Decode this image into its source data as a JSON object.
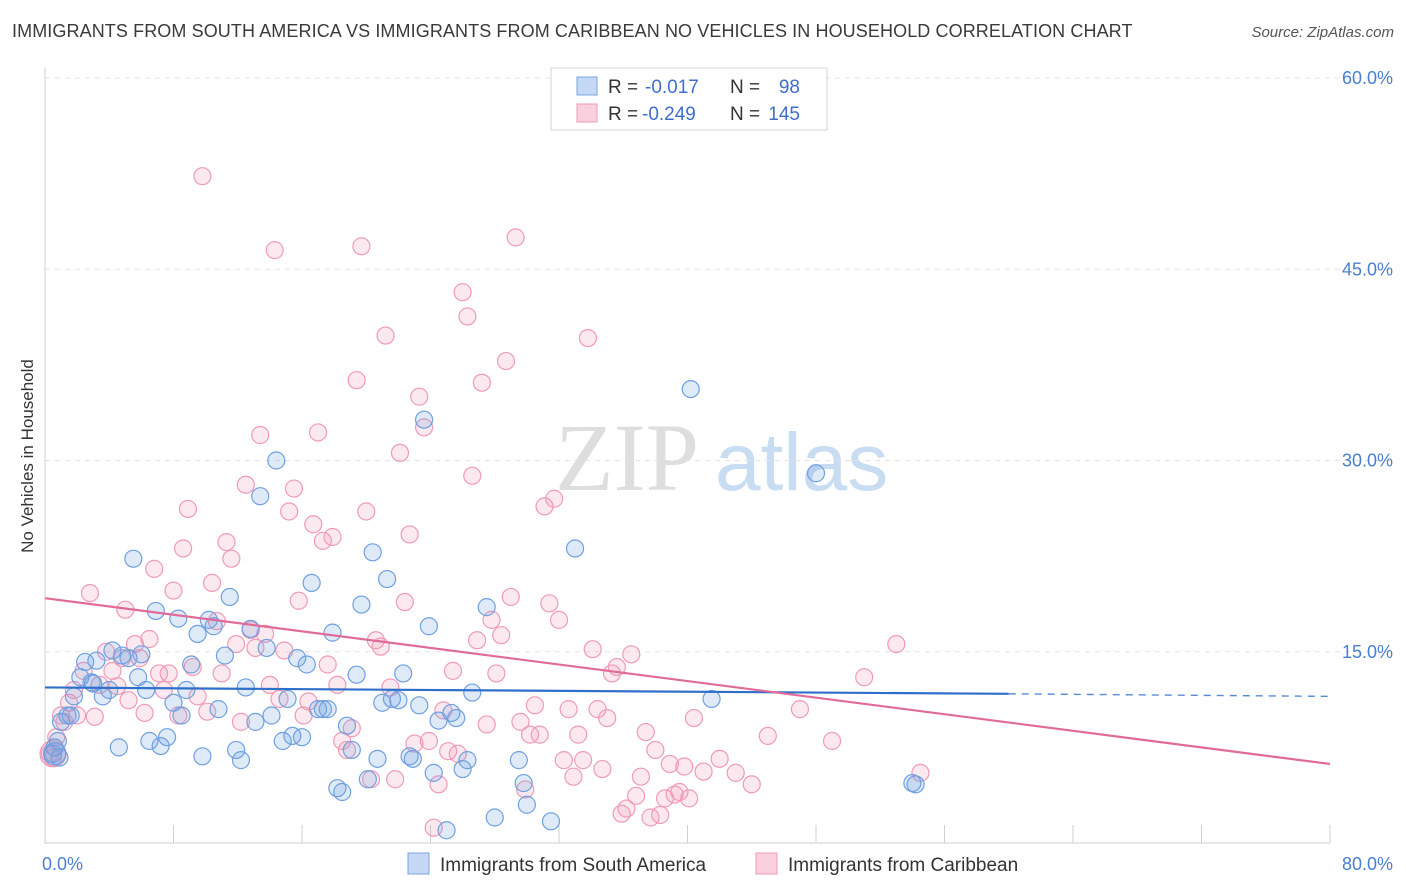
{
  "title": "IMMIGRANTS FROM SOUTH AMERICA VS IMMIGRANTS FROM CARIBBEAN NO VEHICLES IN HOUSEHOLD CORRELATION CHART",
  "source": "Source: ZipAtlas.com",
  "colors": {
    "blue": "#6fa0e0",
    "blue_line": "#2f6fcc",
    "pink": "#f09ab6",
    "pink_line": "#e06a98",
    "accent_text": "#3f6fca"
  },
  "chart_data": {
    "type": "scatter",
    "title": "IMMIGRANTS FROM SOUTH AMERICA VS IMMIGRANTS FROM CARIBBEAN NO VEHICLES IN HOUSEHOLD CORRELATION CHART",
    "xlabel": "",
    "ylabel": "No Vehicles in Household",
    "xlim": [
      0,
      80
    ],
    "ylim": [
      0,
      60
    ],
    "x_tick_labels": [
      "0.0%",
      "80.0%"
    ],
    "y_ticks": [
      15,
      30,
      45,
      60
    ],
    "y_tick_labels": [
      "15.0%",
      "30.0%",
      "45.0%",
      "60.0%"
    ],
    "grid": true,
    "legend_position": "top-center",
    "legend": [
      {
        "r_label": "R =",
        "r_value": "-0.017",
        "n_label": "N =",
        "n_value": "98"
      },
      {
        "r_label": "R =",
        "r_value": "-0.249",
        "n_label": "N =",
        "n_value": "145"
      }
    ],
    "series": [
      {
        "name": "Immigrants from South America",
        "color": "#6fa0e0",
        "trend": {
          "x0": 0,
          "y0": 12.2,
          "x1": 60,
          "y1": 11.7,
          "dashed_to_x": 80,
          "dashed_to_y": 11.5
        },
        "points": [
          [
            0.5,
            7
          ],
          [
            0.6,
            7.5
          ],
          [
            0.8,
            8
          ],
          [
            1.0,
            9.5
          ],
          [
            1.4,
            10
          ],
          [
            1.8,
            11.5
          ],
          [
            2.2,
            13
          ],
          [
            2.5,
            14.2
          ],
          [
            3.0,
            12.5
          ],
          [
            3.2,
            14.3
          ],
          [
            3.6,
            11.5
          ],
          [
            4.0,
            12
          ],
          [
            4.2,
            15.1
          ],
          [
            4.6,
            7.5
          ],
          [
            4.8,
            14.7
          ],
          [
            5.2,
            14.5
          ],
          [
            5.5,
            22.3
          ],
          [
            5.8,
            13
          ],
          [
            6.0,
            14.8
          ],
          [
            6.3,
            12
          ],
          [
            6.5,
            8
          ],
          [
            6.9,
            18.2
          ],
          [
            7.2,
            7.6
          ],
          [
            7.6,
            8.3
          ],
          [
            8.0,
            11
          ],
          [
            8.3,
            17.6
          ],
          [
            8.5,
            10
          ],
          [
            8.8,
            12
          ],
          [
            9.1,
            14
          ],
          [
            9.5,
            16.4
          ],
          [
            9.8,
            6.8
          ],
          [
            10.2,
            17.5
          ],
          [
            10.5,
            17
          ],
          [
            10.8,
            10.5
          ],
          [
            11.2,
            14.7
          ],
          [
            11.5,
            19.3
          ],
          [
            11.9,
            7.3
          ],
          [
            12.2,
            6.5
          ],
          [
            12.5,
            12.2
          ],
          [
            12.8,
            16.8
          ],
          [
            13.1,
            9.5
          ],
          [
            13.4,
            27.2
          ],
          [
            13.8,
            15.3
          ],
          [
            14.1,
            10
          ],
          [
            14.4,
            30
          ],
          [
            14.8,
            8
          ],
          [
            15.1,
            11.3
          ],
          [
            15.4,
            8.4
          ],
          [
            15.7,
            14.5
          ],
          [
            16.0,
            8.3
          ],
          [
            16.3,
            14
          ],
          [
            16.6,
            20.4
          ],
          [
            17.0,
            10.5
          ],
          [
            17.3,
            10.5
          ],
          [
            17.6,
            10.5
          ],
          [
            17.9,
            16.5
          ],
          [
            18.2,
            4.3
          ],
          [
            18.5,
            4
          ],
          [
            18.8,
            9.2
          ],
          [
            19.1,
            7.3
          ],
          [
            19.4,
            13.2
          ],
          [
            19.7,
            18.7
          ],
          [
            20.1,
            5
          ],
          [
            20.4,
            22.8
          ],
          [
            20.7,
            6.6
          ],
          [
            21.0,
            11
          ],
          [
            21.3,
            20.7
          ],
          [
            21.6,
            11.3
          ],
          [
            22.0,
            11.2
          ],
          [
            22.3,
            13.3
          ],
          [
            22.7,
            6.8
          ],
          [
            22.9,
            6.6
          ],
          [
            23.3,
            10.8
          ],
          [
            23.6,
            33.2
          ],
          [
            23.9,
            17
          ],
          [
            24.2,
            5.5
          ],
          [
            24.5,
            9.6
          ],
          [
            25.0,
            1
          ],
          [
            25.3,
            10.2
          ],
          [
            25.6,
            9.8
          ],
          [
            26.0,
            5.8
          ],
          [
            26.3,
            6.5
          ],
          [
            26.6,
            11.8
          ],
          [
            27.5,
            18.5
          ],
          [
            28.0,
            2
          ],
          [
            29.5,
            6.5
          ],
          [
            29.8,
            4.7
          ],
          [
            30.0,
            3
          ],
          [
            31.5,
            1.7
          ],
          [
            33.0,
            23.1
          ],
          [
            40.2,
            35.6
          ],
          [
            41.5,
            11.3
          ],
          [
            48.0,
            29
          ],
          [
            54.0,
            4.7
          ],
          [
            54.2,
            4.6
          ],
          [
            2.9,
            12.6
          ],
          [
            1.6,
            10
          ],
          [
            0.9,
            6.7
          ]
        ]
      },
      {
        "name": "Immigrants from Caribbean",
        "color": "#f09ab6",
        "trend": {
          "x0": 0,
          "y0": 19.2,
          "x1": 80,
          "y1": 6.2
        },
        "points": [
          [
            0.3,
            7
          ],
          [
            0.5,
            6.7
          ],
          [
            0.7,
            8.3
          ],
          [
            1.0,
            10
          ],
          [
            1.2,
            9.5
          ],
          [
            1.5,
            11
          ],
          [
            1.8,
            12
          ],
          [
            2.0,
            10
          ],
          [
            2.4,
            13.5
          ],
          [
            2.8,
            19.6
          ],
          [
            3.1,
            9.9
          ],
          [
            3.4,
            12.4
          ],
          [
            3.8,
            15
          ],
          [
            4.2,
            13.5
          ],
          [
            4.5,
            12.3
          ],
          [
            4.8,
            14.5
          ],
          [
            5.0,
            18.3
          ],
          [
            5.2,
            11.2
          ],
          [
            5.6,
            15.6
          ],
          [
            5.9,
            14.5
          ],
          [
            6.2,
            10.2
          ],
          [
            6.5,
            16
          ],
          [
            6.8,
            21.5
          ],
          [
            7.1,
            13.3
          ],
          [
            7.4,
            12
          ],
          [
            7.7,
            13.3
          ],
          [
            8.0,
            19.8
          ],
          [
            8.3,
            10
          ],
          [
            8.6,
            23.1
          ],
          [
            8.9,
            26.2
          ],
          [
            9.2,
            13.8
          ],
          [
            9.5,
            11.5
          ],
          [
            9.8,
            52.3
          ],
          [
            10.1,
            10.3
          ],
          [
            10.4,
            20.4
          ],
          [
            10.7,
            17.4
          ],
          [
            11.0,
            13.3
          ],
          [
            11.3,
            23.6
          ],
          [
            11.6,
            22.3
          ],
          [
            11.9,
            15.6
          ],
          [
            12.2,
            9.5
          ],
          [
            12.5,
            28.1
          ],
          [
            12.8,
            16.7
          ],
          [
            13.1,
            15.3
          ],
          [
            13.4,
            32
          ],
          [
            13.7,
            16.4
          ],
          [
            14.0,
            12.4
          ],
          [
            14.3,
            46.5
          ],
          [
            14.6,
            11.3
          ],
          [
            14.9,
            15.1
          ],
          [
            15.2,
            26
          ],
          [
            15.5,
            27.8
          ],
          [
            15.8,
            19
          ],
          [
            16.1,
            10
          ],
          [
            16.4,
            11.1
          ],
          [
            16.7,
            25
          ],
          [
            17.0,
            32.2
          ],
          [
            17.3,
            23.7
          ],
          [
            17.6,
            14
          ],
          [
            17.9,
            24
          ],
          [
            18.2,
            12.4
          ],
          [
            18.5,
            8
          ],
          [
            18.8,
            7.3
          ],
          [
            19.1,
            9
          ],
          [
            19.4,
            36.3
          ],
          [
            19.7,
            46.8
          ],
          [
            20.0,
            26
          ],
          [
            20.3,
            5
          ],
          [
            20.6,
            15.9
          ],
          [
            20.9,
            15.4
          ],
          [
            21.2,
            39.8
          ],
          [
            21.5,
            12.2
          ],
          [
            21.8,
            5
          ],
          [
            22.1,
            30.6
          ],
          [
            22.4,
            18.9
          ],
          [
            22.7,
            24.2
          ],
          [
            23.0,
            7.8
          ],
          [
            23.3,
            35
          ],
          [
            23.6,
            32.6
          ],
          [
            23.9,
            8
          ],
          [
            24.2,
            1.2
          ],
          [
            24.5,
            4.6
          ],
          [
            24.8,
            10.4
          ],
          [
            25.1,
            7.2
          ],
          [
            25.4,
            13.5
          ],
          [
            25.7,
            7
          ],
          [
            26.0,
            43.2
          ],
          [
            26.3,
            41.3
          ],
          [
            26.6,
            28.8
          ],
          [
            26.9,
            15.9
          ],
          [
            27.2,
            36.1
          ],
          [
            27.5,
            9.3
          ],
          [
            27.8,
            17.5
          ],
          [
            28.1,
            13.3
          ],
          [
            28.4,
            16.3
          ],
          [
            28.7,
            37.8
          ],
          [
            29.0,
            19.3
          ],
          [
            29.3,
            47.5
          ],
          [
            29.6,
            9.5
          ],
          [
            29.9,
            4.2
          ],
          [
            30.2,
            8.5
          ],
          [
            30.5,
            10.8
          ],
          [
            30.8,
            8.5
          ],
          [
            31.1,
            26.4
          ],
          [
            31.4,
            18.8
          ],
          [
            31.7,
            27
          ],
          [
            32.0,
            17.5
          ],
          [
            32.3,
            6.5
          ],
          [
            32.6,
            10.5
          ],
          [
            32.9,
            5.2
          ],
          [
            33.2,
            8.5
          ],
          [
            33.5,
            6.5
          ],
          [
            33.8,
            39.6
          ],
          [
            34.1,
            15.2
          ],
          [
            34.4,
            10.5
          ],
          [
            34.7,
            5.8
          ],
          [
            35.0,
            9.8
          ],
          [
            35.3,
            13.3
          ],
          [
            35.6,
            13.8
          ],
          [
            35.9,
            2.3
          ],
          [
            36.2,
            2.7
          ],
          [
            36.5,
            14.8
          ],
          [
            36.8,
            3.7
          ],
          [
            37.1,
            5.2
          ],
          [
            37.4,
            8.7
          ],
          [
            37.7,
            2
          ],
          [
            38.0,
            7.3
          ],
          [
            38.3,
            2.2
          ],
          [
            38.6,
            3.5
          ],
          [
            38.9,
            6.2
          ],
          [
            39.2,
            3.8
          ],
          [
            39.5,
            4
          ],
          [
            39.8,
            6
          ],
          [
            40.1,
            3.5
          ],
          [
            40.4,
            9.8
          ],
          [
            41.0,
            5.6
          ],
          [
            42.0,
            6.6
          ],
          [
            43.0,
            5.5
          ],
          [
            44.0,
            4.6
          ],
          [
            45.0,
            8.4
          ],
          [
            47.0,
            10.5
          ],
          [
            49.0,
            8
          ],
          [
            51.0,
            13
          ],
          [
            53.0,
            15.6
          ],
          [
            54.5,
            5.5
          ]
        ]
      }
    ]
  }
}
